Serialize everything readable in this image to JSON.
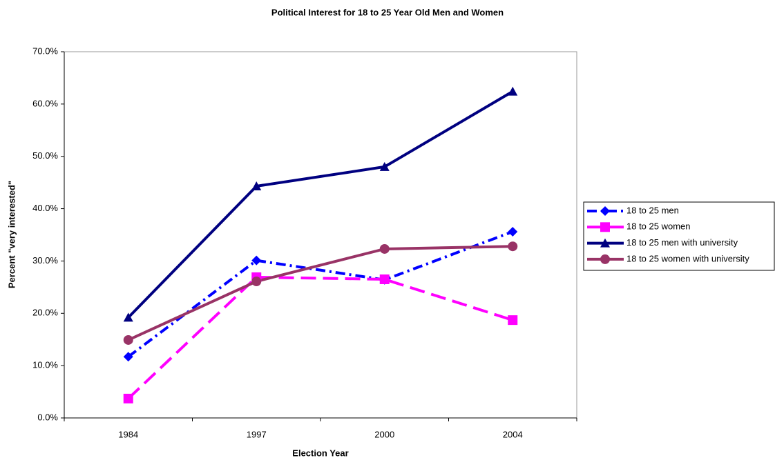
{
  "chart_data": {
    "type": "line",
    "title": "Political Interest for 18 to 25 Year Old Men and Women",
    "x_label": "Election Year",
    "y_label": "Percent \"very interested\"",
    "categories": [
      "1984",
      "1997",
      "2000",
      "2004"
    ],
    "series": [
      {
        "name": "18 to 25 men",
        "color": "#0000ff",
        "marker": "diamond",
        "dash": "dashdot",
        "values": [
          11.7,
          30.1,
          26.4,
          35.6
        ]
      },
      {
        "name": "18 to 25 women",
        "color": "#ff00ff",
        "marker": "square",
        "dash": "longdash",
        "values": [
          3.7,
          26.9,
          26.5,
          18.7
        ]
      },
      {
        "name": "18 to 25 men with university",
        "color": "#000080",
        "marker": "triangle",
        "dash": "solid",
        "values": [
          19.2,
          44.3,
          48.0,
          62.4
        ]
      },
      {
        "name": "18 to 25 women with university",
        "color": "#993366",
        "marker": "circle",
        "dash": "solid",
        "values": [
          14.9,
          26.1,
          32.3,
          32.8
        ]
      }
    ],
    "ylim": [
      0,
      70
    ],
    "yticks": [
      {
        "value": 0,
        "label": "0.0%"
      },
      {
        "value": 10,
        "label": "10.0%"
      },
      {
        "value": 20,
        "label": "20.0%"
      },
      {
        "value": 30,
        "label": "30.0%"
      },
      {
        "value": 40,
        "label": "40.0%"
      },
      {
        "value": 50,
        "label": "50.0%"
      },
      {
        "value": 60,
        "label": "60.0%"
      },
      {
        "value": 70,
        "label": "70.0%"
      }
    ],
    "grid": false,
    "legend": "right"
  }
}
